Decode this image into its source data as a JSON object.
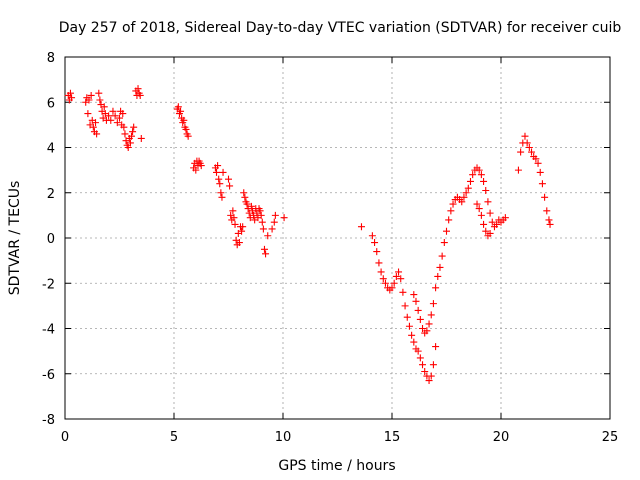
{
  "chart_data": {
    "type": "scatter",
    "title": "Day 257 of 2018, Sidereal Day-to-day VTEC variation (SDTVAR) for receiver cuib",
    "xlabel": "GPS time / hours",
    "ylabel": "SDTVAR / TECUs",
    "xlim": [
      0,
      25
    ],
    "ylim": [
      -8,
      8
    ],
    "xticks": [
      0,
      5,
      10,
      15,
      20,
      25
    ],
    "yticks": [
      -8,
      -6,
      -4,
      -2,
      0,
      2,
      4,
      6,
      8
    ],
    "grid": true,
    "marker": "+",
    "color": "#ff0000",
    "series": [
      {
        "name": "SDTVAR",
        "points": [
          [
            0.15,
            6.3
          ],
          [
            0.2,
            6.1
          ],
          [
            0.25,
            6.4
          ],
          [
            0.3,
            6.2
          ],
          [
            0.95,
            6.0
          ],
          [
            1.0,
            6.2
          ],
          [
            1.05,
            5.5
          ],
          [
            1.1,
            6.1
          ],
          [
            1.15,
            5.0
          ],
          [
            1.2,
            6.3
          ],
          [
            1.25,
            5.2
          ],
          [
            1.3,
            4.9
          ],
          [
            1.35,
            4.7
          ],
          [
            1.4,
            5.1
          ],
          [
            1.45,
            4.6
          ],
          [
            1.55,
            6.4
          ],
          [
            1.6,
            6.1
          ],
          [
            1.65,
            5.9
          ],
          [
            1.7,
            5.6
          ],
          [
            1.75,
            5.3
          ],
          [
            1.8,
            5.8
          ],
          [
            1.85,
            5.5
          ],
          [
            1.9,
            5.2
          ],
          [
            2.0,
            5.4
          ],
          [
            2.1,
            5.2
          ],
          [
            2.2,
            5.6
          ],
          [
            2.3,
            5.4
          ],
          [
            2.4,
            5.1
          ],
          [
            2.5,
            5.3
          ],
          [
            2.55,
            5.6
          ],
          [
            2.6,
            5.0
          ],
          [
            2.65,
            5.5
          ],
          [
            2.7,
            4.9
          ],
          [
            2.75,
            4.6
          ],
          [
            2.8,
            4.3
          ],
          [
            2.85,
            4.1
          ],
          [
            2.9,
            4.0
          ],
          [
            2.95,
            4.4
          ],
          [
            3.0,
            4.2
          ],
          [
            3.05,
            4.5
          ],
          [
            3.1,
            4.7
          ],
          [
            3.15,
            4.9
          ],
          [
            3.25,
            6.5
          ],
          [
            3.3,
            6.3
          ],
          [
            3.35,
            6.6
          ],
          [
            3.4,
            6.4
          ],
          [
            3.45,
            6.3
          ],
          [
            3.5,
            4.4
          ],
          [
            5.15,
            5.7
          ],
          [
            5.2,
            5.8
          ],
          [
            5.25,
            5.5
          ],
          [
            5.3,
            5.6
          ],
          [
            5.35,
            5.3
          ],
          [
            5.4,
            5.1
          ],
          [
            5.45,
            5.2
          ],
          [
            5.5,
            4.9
          ],
          [
            5.55,
            4.8
          ],
          [
            5.6,
            4.6
          ],
          [
            5.65,
            4.5
          ],
          [
            5.9,
            3.1
          ],
          [
            5.95,
            3.3
          ],
          [
            6.0,
            3.0
          ],
          [
            6.05,
            3.4
          ],
          [
            6.1,
            3.2
          ],
          [
            6.15,
            3.4
          ],
          [
            6.2,
            3.3
          ],
          [
            6.25,
            3.2
          ],
          [
            6.9,
            3.1
          ],
          [
            6.95,
            2.9
          ],
          [
            7.0,
            3.2
          ],
          [
            7.05,
            2.6
          ],
          [
            7.1,
            2.4
          ],
          [
            7.15,
            2.0
          ],
          [
            7.2,
            1.8
          ],
          [
            7.25,
            2.9
          ],
          [
            7.5,
            2.6
          ],
          [
            7.55,
            2.3
          ],
          [
            7.6,
            1.0
          ],
          [
            7.65,
            0.8
          ],
          [
            7.7,
            1.2
          ],
          [
            7.75,
            0.9
          ],
          [
            7.8,
            0.6
          ],
          [
            7.85,
            -0.1
          ],
          [
            7.9,
            -0.3
          ],
          [
            7.95,
            0.2
          ],
          [
            8.0,
            -0.2
          ],
          [
            8.05,
            0.5
          ],
          [
            8.1,
            0.3
          ],
          [
            8.15,
            0.5
          ],
          [
            8.2,
            2.0
          ],
          [
            8.25,
            1.8
          ],
          [
            8.3,
            1.6
          ],
          [
            8.35,
            1.5
          ],
          [
            8.4,
            1.3
          ],
          [
            8.45,
            1.1
          ],
          [
            8.5,
            0.9
          ],
          [
            8.55,
            1.4
          ],
          [
            8.6,
            1.2
          ],
          [
            8.65,
            1.0
          ],
          [
            8.7,
            0.8
          ],
          [
            8.75,
            1.3
          ],
          [
            8.8,
            1.1
          ],
          [
            8.85,
            0.9
          ],
          [
            8.9,
            1.3
          ],
          [
            8.95,
            1.2
          ],
          [
            9.0,
            1.0
          ],
          [
            9.05,
            0.7
          ],
          [
            9.1,
            0.4
          ],
          [
            9.15,
            -0.5
          ],
          [
            9.2,
            -0.7
          ],
          [
            9.3,
            0.1
          ],
          [
            9.5,
            0.4
          ],
          [
            9.6,
            0.7
          ],
          [
            9.65,
            1.0
          ],
          [
            10.05,
            0.9
          ],
          [
            13.6,
            0.5
          ],
          [
            14.1,
            0.1
          ],
          [
            14.2,
            -0.2
          ],
          [
            14.3,
            -0.6
          ],
          [
            14.4,
            -1.1
          ],
          [
            14.5,
            -1.5
          ],
          [
            14.6,
            -1.8
          ],
          [
            14.7,
            -2.0
          ],
          [
            14.8,
            -2.2
          ],
          [
            14.9,
            -2.3
          ],
          [
            15.0,
            -2.2
          ],
          [
            15.1,
            -2.0
          ],
          [
            15.2,
            -1.7
          ],
          [
            15.3,
            -1.5
          ],
          [
            15.4,
            -1.8
          ],
          [
            15.5,
            -2.4
          ],
          [
            15.6,
            -3.0
          ],
          [
            15.7,
            -3.5
          ],
          [
            15.8,
            -3.9
          ],
          [
            15.9,
            -4.3
          ],
          [
            16.0,
            -4.6
          ],
          [
            16.1,
            -4.9
          ],
          [
            16.2,
            -5.0
          ],
          [
            16.3,
            -5.3
          ],
          [
            16.4,
            -5.6
          ],
          [
            16.5,
            -5.9
          ],
          [
            16.6,
            -6.1
          ],
          [
            16.7,
            -6.3
          ],
          [
            16.8,
            -6.1
          ],
          [
            16.9,
            -5.6
          ],
          [
            17.0,
            -4.8
          ],
          [
            16.0,
            -2.5
          ],
          [
            16.1,
            -2.8
          ],
          [
            16.2,
            -3.2
          ],
          [
            16.3,
            -3.6
          ],
          [
            16.4,
            -4.0
          ],
          [
            16.5,
            -4.2
          ],
          [
            16.6,
            -4.1
          ],
          [
            16.7,
            -3.8
          ],
          [
            16.8,
            -3.4
          ],
          [
            16.9,
            -2.9
          ],
          [
            17.0,
            -2.2
          ],
          [
            17.1,
            -1.7
          ],
          [
            17.2,
            -1.3
          ],
          [
            17.3,
            -0.8
          ],
          [
            17.4,
            -0.2
          ],
          [
            17.5,
            0.3
          ],
          [
            17.6,
            0.8
          ],
          [
            17.7,
            1.2
          ],
          [
            17.8,
            1.5
          ],
          [
            17.9,
            1.7
          ],
          [
            18.0,
            1.8
          ],
          [
            18.1,
            1.7
          ],
          [
            18.2,
            1.6
          ],
          [
            18.3,
            1.8
          ],
          [
            18.4,
            2.0
          ],
          [
            18.5,
            2.2
          ],
          [
            18.6,
            2.5
          ],
          [
            18.7,
            2.8
          ],
          [
            18.8,
            3.0
          ],
          [
            18.9,
            3.1
          ],
          [
            19.0,
            3.0
          ],
          [
            19.1,
            2.8
          ],
          [
            19.2,
            2.5
          ],
          [
            19.3,
            2.1
          ],
          [
            19.4,
            1.6
          ],
          [
            19.5,
            1.1
          ],
          [
            19.6,
            0.7
          ],
          [
            19.7,
            0.5
          ],
          [
            19.8,
            0.6
          ],
          [
            19.9,
            0.8
          ],
          [
            20.0,
            0.7
          ],
          [
            20.1,
            0.8
          ],
          [
            20.2,
            0.9
          ],
          [
            18.9,
            1.5
          ],
          [
            19.0,
            1.3
          ],
          [
            19.1,
            1.0
          ],
          [
            19.2,
            0.6
          ],
          [
            19.3,
            0.3
          ],
          [
            19.4,
            0.1
          ],
          [
            19.5,
            0.2
          ],
          [
            20.8,
            3.0
          ],
          [
            20.9,
            3.8
          ],
          [
            21.0,
            4.2
          ],
          [
            21.1,
            4.5
          ],
          [
            21.2,
            4.2
          ],
          [
            21.3,
            4.0
          ],
          [
            21.4,
            3.8
          ],
          [
            21.5,
            3.6
          ],
          [
            21.6,
            3.5
          ],
          [
            21.7,
            3.3
          ],
          [
            21.8,
            2.9
          ],
          [
            21.9,
            2.4
          ],
          [
            22.0,
            1.8
          ],
          [
            22.1,
            1.2
          ],
          [
            22.2,
            0.8
          ],
          [
            22.25,
            0.6
          ]
        ]
      }
    ]
  }
}
